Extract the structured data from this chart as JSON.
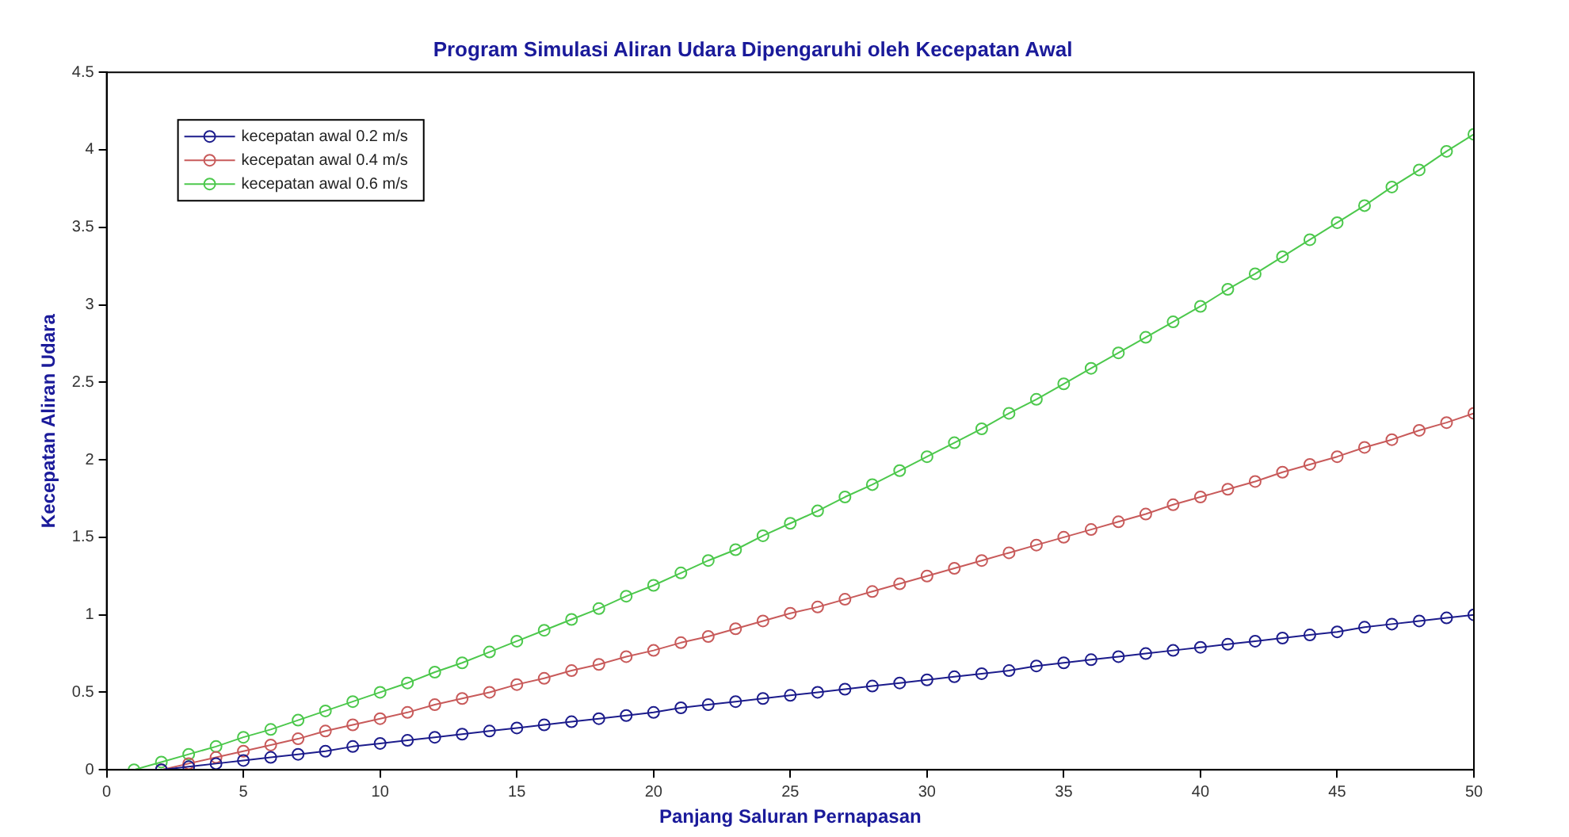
{
  "chart_data": {
    "type": "line",
    "title": "Program Simulasi Aliran Udara Dipengaruhi oleh Kecepatan Awal",
    "xlabel": "Panjang Saluran Pernapasan",
    "ylabel": "Kecepatan Aliran Udara",
    "xlim": [
      0,
      50
    ],
    "xticks": [
      0,
      5,
      10,
      15,
      20,
      25,
      30,
      35,
      40,
      45,
      50
    ],
    "ylim": [
      0,
      4.5
    ],
    "yticks": [
      0,
      0.5,
      1,
      1.5,
      2,
      2.5,
      3,
      3.5,
      4,
      4.5
    ],
    "grid": false,
    "legend": "top left",
    "marker": "circle",
    "line_style": "solid",
    "series": [
      {
        "name": "kecepatan awal 0.2 m/s",
        "color": "#1c1c8c",
        "x": [
          2,
          3,
          4,
          5,
          6,
          7,
          8,
          9,
          10,
          11,
          12,
          13,
          14,
          15,
          16,
          17,
          18,
          19,
          20,
          21,
          22,
          23,
          24,
          25,
          26,
          27,
          28,
          29,
          30,
          31,
          32,
          33,
          34,
          35,
          36,
          37,
          38,
          39,
          40,
          41,
          42,
          43,
          44,
          45,
          46,
          47,
          48,
          49,
          50
        ],
        "values": [
          0,
          0.02,
          0.04,
          0.06,
          0.08,
          0.1,
          0.12,
          0.15,
          0.17,
          0.19,
          0.21,
          0.23,
          0.25,
          0.27,
          0.29,
          0.31,
          0.33,
          0.35,
          0.37,
          0.4,
          0.42,
          0.44,
          0.46,
          0.48,
          0.5,
          0.52,
          0.54,
          0.56,
          0.58,
          0.6,
          0.62,
          0.64,
          0.67,
          0.69,
          0.71,
          0.73,
          0.75,
          0.77,
          0.79,
          0.81,
          0.83,
          0.85,
          0.87,
          0.89,
          0.92,
          0.94,
          0.96,
          0.98,
          1.0
        ]
      },
      {
        "name": "kecepatan awal 0.4 m/s",
        "color": "#c85a5a",
        "x": [
          2,
          3,
          4,
          5,
          6,
          7,
          8,
          9,
          10,
          11,
          12,
          13,
          14,
          15,
          16,
          17,
          18,
          19,
          20,
          21,
          22,
          23,
          24,
          25,
          26,
          27,
          28,
          29,
          30,
          31,
          32,
          33,
          34,
          35,
          36,
          37,
          38,
          39,
          40,
          41,
          42,
          43,
          44,
          45,
          46,
          47,
          48,
          49,
          50
        ],
        "values": [
          0,
          0.04,
          0.08,
          0.12,
          0.16,
          0.2,
          0.25,
          0.29,
          0.33,
          0.37,
          0.42,
          0.46,
          0.5,
          0.55,
          0.59,
          0.64,
          0.68,
          0.73,
          0.77,
          0.82,
          0.86,
          0.91,
          0.96,
          1.01,
          1.05,
          1.1,
          1.15,
          1.2,
          1.25,
          1.3,
          1.35,
          1.4,
          1.45,
          1.5,
          1.55,
          1.6,
          1.65,
          1.71,
          1.76,
          1.81,
          1.86,
          1.92,
          1.97,
          2.02,
          2.08,
          2.13,
          2.19,
          2.24,
          2.3
        ]
      },
      {
        "name": "kecepatan awal 0.6 m/s",
        "color": "#4cc84c",
        "x": [
          1,
          2,
          3,
          4,
          5,
          6,
          7,
          8,
          9,
          10,
          11,
          12,
          13,
          14,
          15,
          16,
          17,
          18,
          19,
          20,
          21,
          22,
          23,
          24,
          25,
          26,
          27,
          28,
          29,
          30,
          31,
          32,
          33,
          34,
          35,
          36,
          37,
          38,
          39,
          40,
          41,
          42,
          43,
          44,
          45,
          46,
          47,
          48,
          49,
          50
        ],
        "values": [
          0,
          0.05,
          0.1,
          0.15,
          0.21,
          0.26,
          0.32,
          0.38,
          0.44,
          0.5,
          0.56,
          0.63,
          0.69,
          0.76,
          0.83,
          0.9,
          0.97,
          1.04,
          1.12,
          1.19,
          1.27,
          1.35,
          1.42,
          1.51,
          1.59,
          1.67,
          1.76,
          1.84,
          1.93,
          2.02,
          2.11,
          2.2,
          2.3,
          2.39,
          2.49,
          2.59,
          2.69,
          2.79,
          2.89,
          2.99,
          3.1,
          3.2,
          3.31,
          3.42,
          3.53,
          3.64,
          3.76,
          3.87,
          3.99,
          4.1
        ]
      }
    ]
  }
}
